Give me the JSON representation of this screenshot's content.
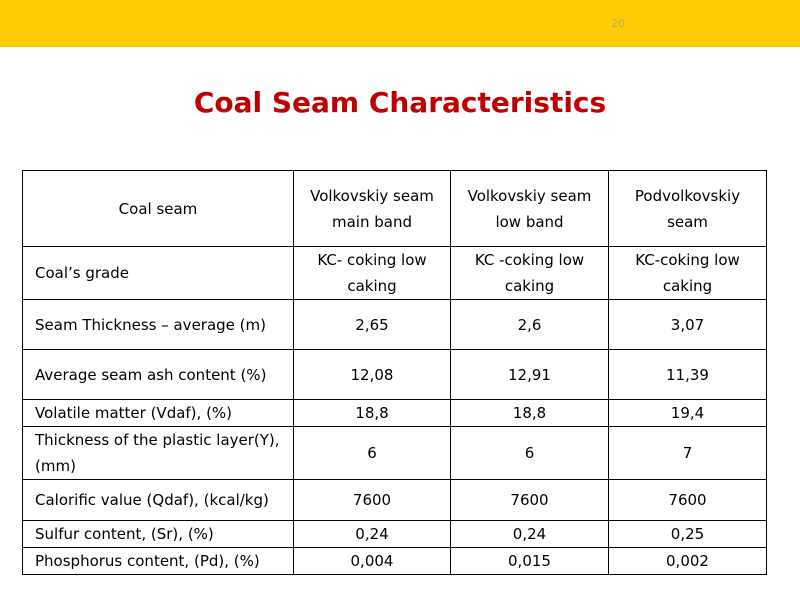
{
  "page_number": "20",
  "title": "Coal Seam Characteristics",
  "table": {
    "header": [
      "Coal seam",
      "Volkovskiy seam main band",
      "Volkovskiy seam low band",
      "Podvolkovskiy seam"
    ],
    "rows": [
      [
        "Coal’s grade",
        "KC- coking low caking",
        "KC -coking low caking",
        "KC-coking low caking"
      ],
      [
        "Seam Thickness – average (m)",
        "2,65",
        "2,6",
        "3,07"
      ],
      [
        "Average seam ash content (%)",
        "12,08",
        "12,91",
        "11,39"
      ],
      [
        "Volatile matter (Vdaf), (%)",
        "18,8",
        "18,8",
        "19,4"
      ],
      [
        "Thickness of the plastic layer(Y),(mm)",
        "6",
        "6",
        "7"
      ],
      [
        "Calorific value (Qdaf), (kcal/kg)",
        "7600",
        "7600",
        "7600"
      ],
      [
        "Sulfur content, (Sr), (%)",
        "0,24",
        "0,24",
        "0,25"
      ],
      [
        "Phosphorus content, (Pd), (%)",
        "0,004",
        "0,015",
        "0,002"
      ]
    ]
  }
}
